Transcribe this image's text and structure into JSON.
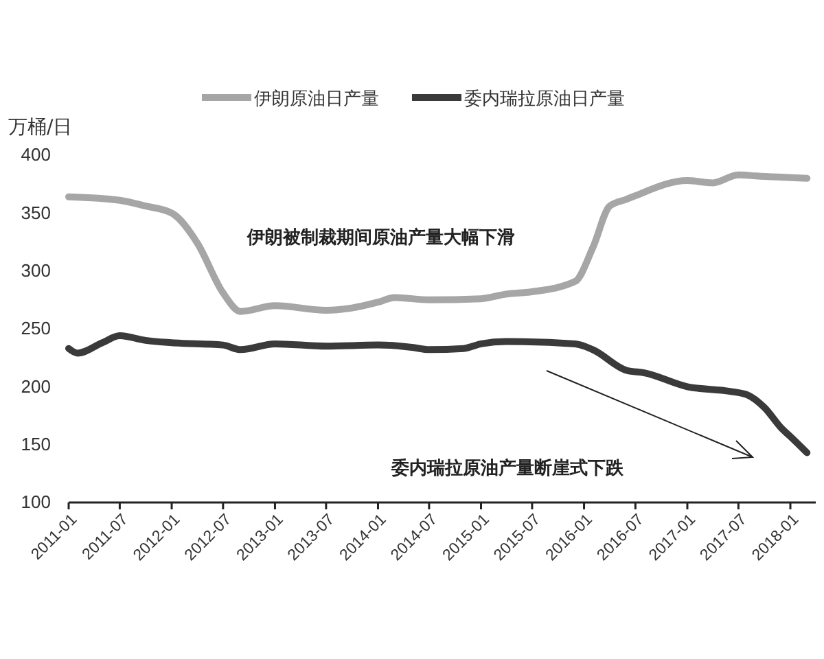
{
  "chart_data": {
    "type": "line",
    "ylabel": "万桶/日",
    "legend": "top",
    "marker": "none",
    "line_style": "solid",
    "grid": false,
    "ylim": [
      100,
      400
    ],
    "yticks": [
      100,
      150,
      200,
      250,
      300,
      350,
      400
    ],
    "xlim": [
      "2011-01",
      "2018-04"
    ],
    "xticks": [
      "2011-01",
      "2011-07",
      "2012-01",
      "2012-07",
      "2013-01",
      "2013-07",
      "2014-01",
      "2014-07",
      "2015-01",
      "2015-07",
      "2016-01",
      "2016-07",
      "2017-01",
      "2017-07",
      "2018-01"
    ],
    "annotations": [
      "伊朗被制裁期间原油产量大幅下滑",
      "委内瑞拉原油产量断崖式下跌"
    ],
    "series": [
      {
        "name": "伊朗原油日产量",
        "color": "#a6a6a6",
        "x": [
          "2011-01",
          "2011-07",
          "2011-10",
          "2012-01",
          "2012-04",
          "2012-07",
          "2012-09",
          "2013-01",
          "2013-07",
          "2013-10",
          "2014-01",
          "2014-03",
          "2014-07",
          "2015-01",
          "2015-04",
          "2015-07",
          "2015-12",
          "2016-02",
          "2016-04",
          "2016-06",
          "2016-07",
          "2017-01",
          "2017-04",
          "2017-07",
          "2017-09",
          "2018-03"
        ],
        "values": [
          364,
          361,
          356,
          350,
          324,
          281,
          265,
          270,
          266,
          268,
          273,
          277,
          275,
          276,
          280,
          282,
          291,
          320,
          356,
          362,
          365,
          378,
          376,
          383,
          382,
          380
        ]
      },
      {
        "name": "委内瑞拉原油日产量",
        "color": "#3a3a3a",
        "x": [
          "2011-01",
          "2011-02",
          "2011-05",
          "2011-07",
          "2011-10",
          "2012-01",
          "2012-07",
          "2012-09",
          "2013-01",
          "2013-07",
          "2014-01",
          "2014-05",
          "2014-07",
          "2014-11",
          "2015-01",
          "2015-04",
          "2015-12",
          "2016-02",
          "2016-06",
          "2016-08",
          "2017-01",
          "2017-06",
          "2017-08",
          "2017-10",
          "2017-12",
          "2018-01",
          "2018-03"
        ],
        "values": [
          233,
          229,
          238,
          244,
          240,
          238,
          236,
          232,
          237,
          235,
          236,
          234,
          232,
          233,
          237,
          239,
          237,
          232,
          214,
          212,
          200,
          196,
          193,
          182,
          164,
          157,
          143
        ]
      }
    ]
  }
}
